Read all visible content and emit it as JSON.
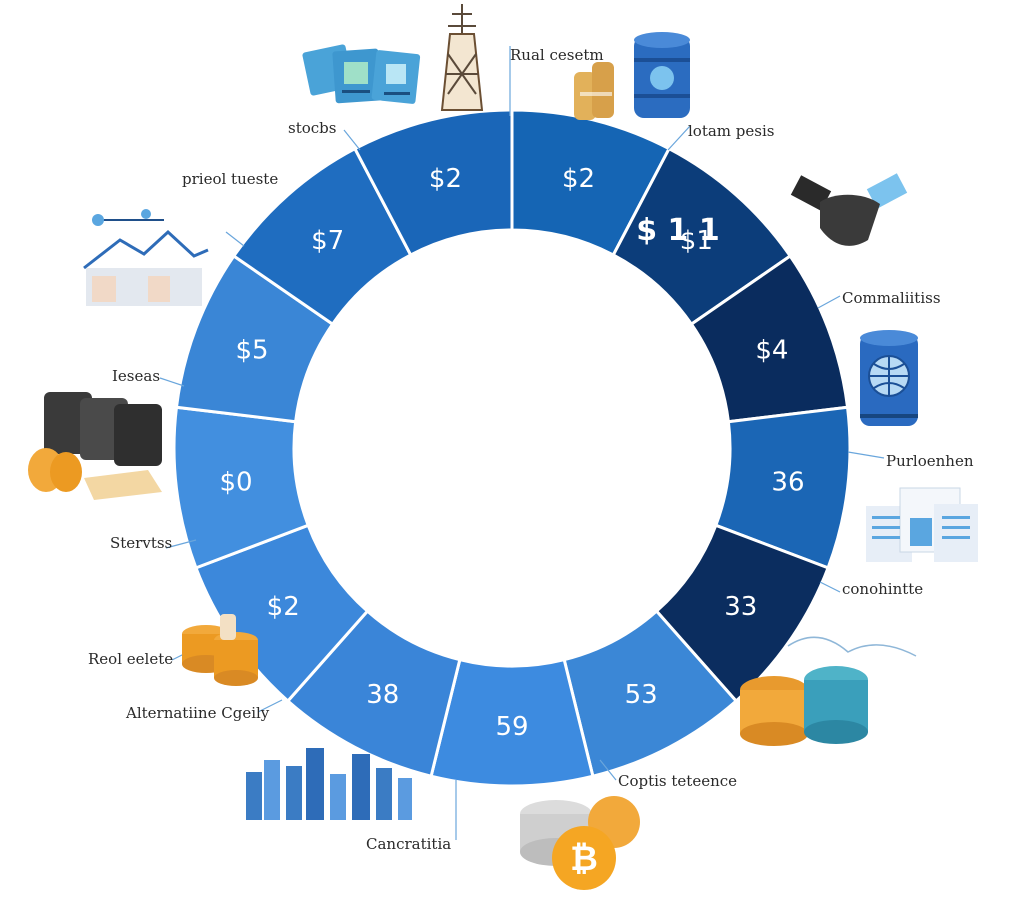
{
  "chart_data": {
    "type": "donut",
    "title": "",
    "segments": [
      {
        "label": "$2",
        "value": 1,
        "color": "#1565b4"
      },
      {
        "label": "$1",
        "value": 1,
        "color": "#0c3d7a"
      },
      {
        "label": "$4",
        "value": 1,
        "color": "#0a2c5e"
      },
      {
        "label": "36",
        "value": 1,
        "color": "#1b66b5"
      },
      {
        "label": "33",
        "value": 1,
        "color": "#0b2d5f"
      },
      {
        "label": "53",
        "value": 1,
        "color": "#3b87d6"
      },
      {
        "label": "59",
        "value": 1,
        "color": "#3d8be0"
      },
      {
        "label": "38",
        "value": 1,
        "color": "#3a85d8"
      },
      {
        "label": "$2",
        "value": 1,
        "color": "#3c88db"
      },
      {
        "label": "$0",
        "value": 1,
        "color": "#428fdf"
      },
      {
        "label": "$5",
        "value": 1,
        "color": "#3a86d6"
      },
      {
        "label": "$7",
        "value": 1,
        "color": "#1f6dc0"
      },
      {
        "label": "$2",
        "value": 1,
        "color": "#1a66b8"
      }
    ],
    "stray_text": "$ 1 1",
    "categories": [
      "Rual cesetm",
      "lotam pesis",
      "Commaliitiss",
      "Purloenhen",
      "conohintte",
      "Coptis teteence",
      "Cancratitia",
      "Alternatiine Cgeily",
      "Reol eelete",
      "Stervtss",
      "Ieseas",
      "prieol tueste",
      "stocbs"
    ]
  },
  "icons": [
    {
      "name": "documents-icon"
    },
    {
      "name": "tower-icon"
    },
    {
      "name": "gold-bars-icon"
    },
    {
      "name": "barrel-icon"
    },
    {
      "name": "handshake-icon"
    },
    {
      "name": "globe-barrel-icon"
    },
    {
      "name": "finance-report-icon"
    },
    {
      "name": "coin-stacks-icon"
    },
    {
      "name": "bitcoin-icon"
    },
    {
      "name": "bar-stacks-icon"
    },
    {
      "name": "gold-coins-icon"
    },
    {
      "name": "oil-drums-icon"
    },
    {
      "name": "building-icon"
    }
  ]
}
